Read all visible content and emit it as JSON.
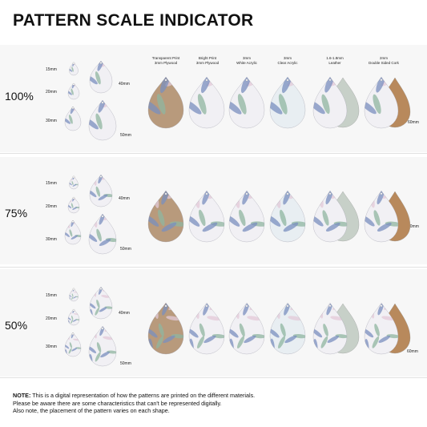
{
  "title": "PATTERN SCALE INDICATOR",
  "materials": [
    {
      "line1": "Transparent Print",
      "line2": "3mm Plywood"
    },
    {
      "line1": "Bright Print",
      "line2": "3mm Plywood"
    },
    {
      "line1": "3mm",
      "line2": "White Acrylic"
    },
    {
      "line1": "3mm",
      "line2": "Clear Acrylic"
    },
    {
      "line1": "1.6-1.8mm",
      "line2": "Leather"
    },
    {
      "line1": "2mm",
      "line2": "Double Sided Cork"
    }
  ],
  "rows": [
    {
      "percent": "100%",
      "sizes": [
        "15mm",
        "20mm",
        "30mm",
        "40mm",
        "50mm"
      ],
      "right_size": "60mm"
    },
    {
      "percent": "75%",
      "sizes": [
        "15mm",
        "20mm",
        "30mm",
        "40mm",
        "50mm"
      ],
      "right_size": "60mm"
    },
    {
      "percent": "50%",
      "sizes": [
        "15mm",
        "20mm",
        "30mm",
        "40mm",
        "50mm"
      ],
      "right_size": "60mm"
    }
  ],
  "note": {
    "label": "NOTE:",
    "line1": " This is a digital representation of how the patterns are printed on the different materials.",
    "line2": "Please be aware there are some characteristics that can't be represented digitally.",
    "line3": "Also note, the placement of the pattern varies on each shape."
  },
  "colors": {
    "plywood": "#b89a7c",
    "pattern_base": "#f1f0f4",
    "leaf_blue": "#7a8fbf",
    "leaf_green": "#8fb5a0",
    "leaf_pink": "#e3c9d8",
    "leather": "#c7d0c8",
    "cork": "#b8895c"
  }
}
